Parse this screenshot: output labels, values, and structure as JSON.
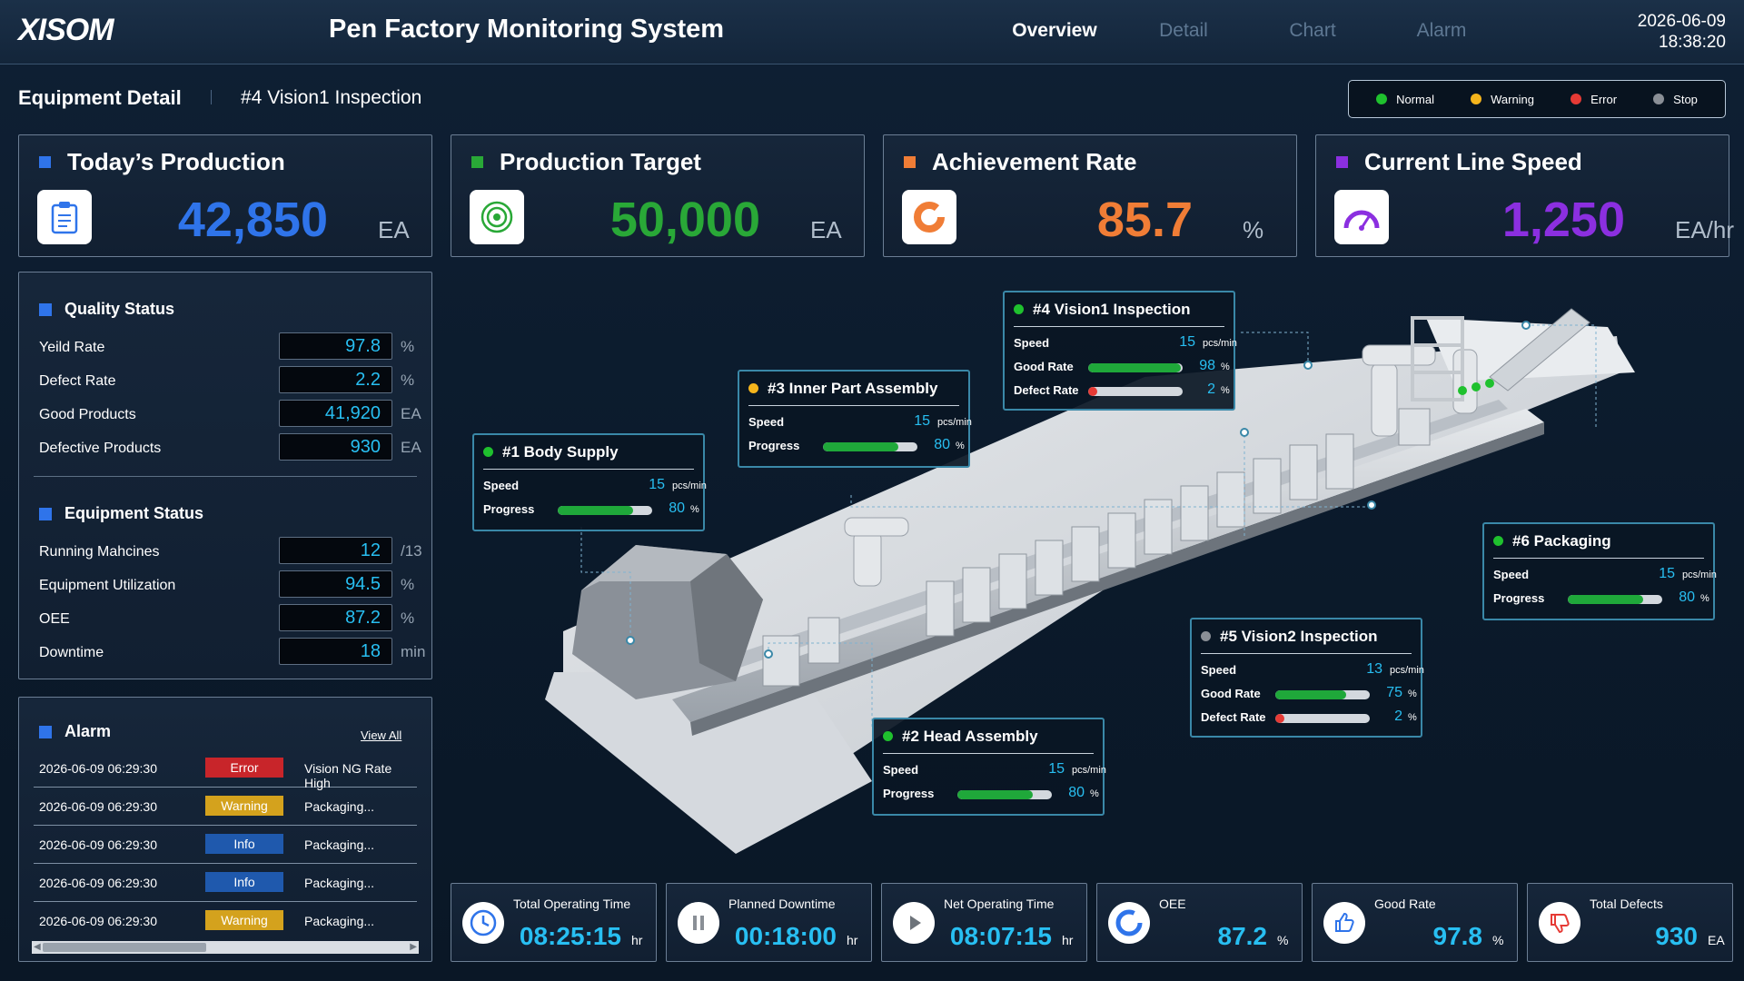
{
  "header": {
    "logo": "XISOM",
    "title": "Pen Factory Monitoring System",
    "nav": [
      "Overview",
      "Detail",
      "Chart",
      "Alarm"
    ],
    "active_nav": "Overview",
    "date": "2026-06-09",
    "time": "18:38:20"
  },
  "page": {
    "title": "Equipment Detail",
    "equipment": "#4 Vision1 Inspection"
  },
  "legend": [
    {
      "label": "Normal",
      "color": "#1fc12e"
    },
    {
      "label": "Warning",
      "color": "#f5b51c"
    },
    {
      "label": "Error",
      "color": "#e63a35"
    },
    {
      "label": "Stop",
      "color": "#8a8f96"
    }
  ],
  "kpis": [
    {
      "title": "Today’s Production",
      "value": "42,850",
      "unit": "EA",
      "color": "#2f74ea",
      "icon": "clipboard-icon"
    },
    {
      "title": "Production Target",
      "value": "50,000",
      "unit": "EA",
      "color": "#29a837",
      "icon": "target-icon"
    },
    {
      "title": "Achievement Rate",
      "value": "85.7",
      "unit": "%",
      "color": "#f07d36",
      "icon": "donut-icon"
    },
    {
      "title": "Current Line Speed",
      "value": "1,250",
      "unit": "EA/hr",
      "color": "#8b2fe0",
      "icon": "speedometer-icon"
    }
  ],
  "quality": {
    "title": "Quality Status",
    "rows": [
      {
        "label": "Yeild Rate",
        "value": "97.8",
        "unit": "%"
      },
      {
        "label": "Defect Rate",
        "value": "2.2",
        "unit": "%"
      },
      {
        "label": "Good Products",
        "value": "41,920",
        "unit": "EA"
      },
      {
        "label": "Defective Products",
        "value": "930",
        "unit": "EA"
      }
    ]
  },
  "equipment_status": {
    "title": "Equipment Status",
    "rows": [
      {
        "label": "Running Mahcines",
        "value": "12",
        "unit": "/13"
      },
      {
        "label": "Equipment Utilization",
        "value": "94.5",
        "unit": "%"
      },
      {
        "label": "OEE",
        "value": "87.2",
        "unit": "%"
      },
      {
        "label": "Downtime",
        "value": "18",
        "unit": "min"
      }
    ]
  },
  "alarm": {
    "title": "Alarm",
    "view_all": "View All",
    "rows": [
      {
        "time": "2026-06-09 06:29:30",
        "level": "Error",
        "color": "#c8252a",
        "message": "Vision NG Rate High"
      },
      {
        "time": "2026-06-09 06:29:30",
        "level": "Warning",
        "color": "#d4a21d",
        "message": "Packaging..."
      },
      {
        "time": "2026-06-09 06:29:30",
        "level": "Info",
        "color": "#1f59ad",
        "message": "Packaging..."
      },
      {
        "time": "2026-06-09 06:29:30",
        "level": "Info",
        "color": "#1f59ad",
        "message": "Packaging..."
      },
      {
        "time": "2026-06-09 06:29:30",
        "level": "Warning",
        "color": "#d4a21d",
        "message": "Packaging..."
      }
    ]
  },
  "stations": [
    {
      "name": "#1 Body Supply",
      "status_color": "#1fc12e",
      "speed": "15",
      "speed_unit": "pcs/min",
      "progress_label": "Progress",
      "progress": 80,
      "progress_text": "80"
    },
    {
      "name": "#2 Head Assembly",
      "status_color": "#1fc12e",
      "speed": "15",
      "speed_unit": "pcs/min",
      "progress_label": "Progress",
      "progress": 80,
      "progress_text": "80"
    },
    {
      "name": "#3 Inner Part Assembly",
      "status_color": "#f5b51c",
      "speed": "15",
      "speed_unit": "pcs/min",
      "progress_label": "Progress",
      "progress": 80,
      "progress_text": "80"
    },
    {
      "name": "#4 Vision1 Inspection",
      "status_color": "#1fc12e",
      "speed": "15",
      "speed_unit": "pcs/min",
      "good_label": "Good Rate",
      "good": 98,
      "good_text": "98",
      "defect_label": "Defect Rate",
      "defect": 2,
      "defect_text": "2"
    },
    {
      "name": "#5 Vision2 Inspection",
      "status_color": "#8a8f96",
      "speed": "13",
      "speed_unit": "pcs/min",
      "good_label": "Good Rate",
      "good": 75,
      "good_text": "75",
      "defect_label": "Defect Rate",
      "defect": 2,
      "defect_text": "2"
    },
    {
      "name": "#6 Packaging",
      "status_color": "#1fc12e",
      "speed": "15",
      "speed_unit": "pcs/min",
      "progress_label": "Progress",
      "progress": 80,
      "progress_text": "80"
    }
  ],
  "speed_label": "Speed",
  "percent": "%",
  "bottom": [
    {
      "label": "Total Operating Time",
      "value": "08:25:15",
      "unit": "hr",
      "icon": "clock-icon"
    },
    {
      "label": "Planned Downtime",
      "value": "00:18:00",
      "unit": "hr",
      "icon": "pause-icon"
    },
    {
      "label": "Net Operating Time",
      "value": "08:07:15",
      "unit": "hr",
      "icon": "play-icon"
    },
    {
      "label": "OEE",
      "value": "87.2",
      "unit": "%",
      "icon": "ring-icon"
    },
    {
      "label": "Good Rate",
      "value": "97.8",
      "unit": "%",
      "icon": "thumbs-up-icon"
    },
    {
      "label": "Total Defects",
      "value": "930",
      "unit": "EA",
      "icon": "thumbs-down-icon"
    }
  ]
}
